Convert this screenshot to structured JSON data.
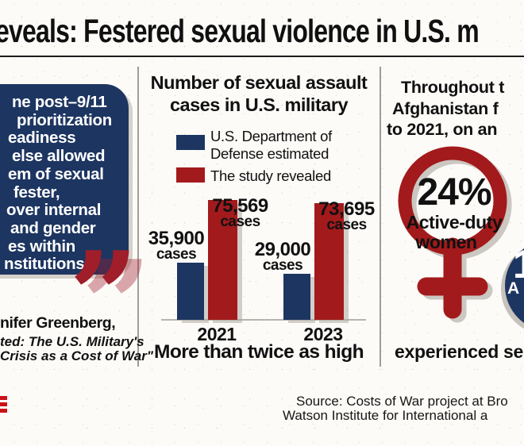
{
  "page": {
    "headline": "eveals: Festered sexual violence in U.S. m"
  },
  "colors": {
    "navy": "#1d3561",
    "red": "#a31a1c",
    "quote_red": "#9f1e2a",
    "quote_red_shadow": "rgba(159,30,42,0.38)",
    "logo_red": "#cc1019"
  },
  "quote_panel": {
    "lines": [
      "ne post–9/11",
      "prioritization",
      "eadiness",
      "else allowed",
      "em of sexual",
      "fester,",
      "over internal",
      "and gender",
      "es within",
      "nstitutions."
    ],
    "quote_glyph": "”",
    "attribution_name": "nifer Greenberg,",
    "attribution_work_line1": "ted: The U.S. Military's",
    "attribution_work_line2": "Crisis as a Cost of War\""
  },
  "chart_panel": {
    "title_line1": "Number of sexual assault",
    "title_line2": "cases in U.S. military",
    "legend": [
      {
        "label_line1": "U.S. Department of",
        "label_line2": "Defense estimated",
        "color_key": "navy"
      },
      {
        "label_line1": "The study revealed",
        "color_key": "red"
      }
    ],
    "caption": "More than twice as high"
  },
  "chart_data": {
    "type": "bar",
    "title": "Number of sexual assault cases in U.S. military",
    "categories": [
      "2021",
      "2023"
    ],
    "series": [
      {
        "name": "U.S. Department of Defense estimated",
        "color": "#1d3561",
        "values": [
          35900,
          29000
        ],
        "labels": [
          "35,900\ncases",
          "29,000\ncases"
        ]
      },
      {
        "name": "The study revealed",
        "color": "#a31a1c",
        "values": [
          75569,
          73695
        ],
        "labels": [
          "75,569\ncases",
          "73,695\ncases"
        ]
      }
    ],
    "xlabel": "",
    "ylabel": "cases",
    "ylim": [
      0,
      80000
    ],
    "grid": false,
    "legend_position": "top",
    "annotation": "More than twice as high"
  },
  "stat_panel": {
    "intro_lines": [
      "Throughout t",
      "Afghanistan f",
      "to 2021, on an"
    ],
    "female_percent": "24%",
    "female_label_line1": "Active-duty",
    "female_label_line2": "women",
    "male_fragment_digit": "1",
    "male_fragment_letter": "A",
    "outcome_text": "experienced se"
  },
  "source": {
    "line1": "Source: Costs of War project at Bro",
    "line2": "Watson Institute for International a"
  }
}
